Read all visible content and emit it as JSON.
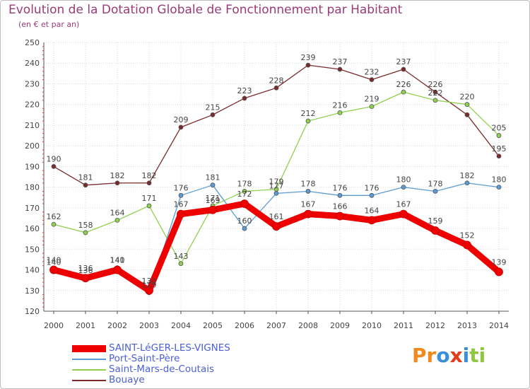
{
  "header": {
    "title": "Evolution de la Dotation Globale de Fonctionnement par Habitant",
    "subtitle": "(en € et par an)"
  },
  "logo": {
    "text": "Proxiti",
    "letters": [
      {
        "ch": "P",
        "color": "#f08a1e"
      },
      {
        "ch": "r",
        "color": "#f08a1e"
      },
      {
        "ch": "o",
        "color": "#3a8fd9"
      },
      {
        "ch": "x",
        "color": "#e23c1a"
      },
      {
        "ch": "i",
        "color": "#3a8fd9"
      },
      {
        "ch": "t",
        "color": "#8fc73e"
      },
      {
        "ch": "i",
        "color": "#8fc73e"
      }
    ]
  },
  "chart_data": {
    "type": "line",
    "title": "Evolution de la Dotation Globale de Fonctionnement par Habitant",
    "subtitle": "(en € et par an)",
    "xlabel": "",
    "ylabel": "",
    "ylim": [
      120,
      250
    ],
    "ytick_step": 10,
    "grid": true,
    "legend_position": "bottom-left",
    "x": [
      "2000",
      "2001",
      "2002",
      "2003",
      "2004",
      "2005",
      "2006",
      "2007",
      "2008",
      "2009",
      "2010",
      "2011",
      "2012",
      "2013",
      "2014"
    ],
    "series": [
      {
        "name": "Bouaye",
        "color": "#7a2a2a",
        "thick": false,
        "values": [
          190,
          181,
          182,
          182,
          209,
          215,
          223,
          228,
          239,
          237,
          232,
          237,
          226,
          215,
          195
        ],
        "labels": [
          "190",
          "181",
          "182",
          "182",
          "209",
          "215",
          "223",
          "228",
          "239",
          "237",
          "232",
          "237",
          "226",
          "",
          "195"
        ]
      },
      {
        "name": "Saint-Mars-de-Coutais",
        "color": "#8fd14f",
        "thick": false,
        "values": [
          162,
          158,
          164,
          171,
          143,
          171,
          178,
          179,
          212,
          216,
          219,
          226,
          222,
          220,
          205
        ],
        "labels": [
          "162",
          "158",
          "164",
          "171",
          "143",
          "171",
          "178",
          "179",
          "212",
          "216",
          "219",
          "226",
          "222",
          "220",
          "205"
        ]
      },
      {
        "name": "Port-Saint-Père",
        "color": "#5b9bd5",
        "thick": false,
        "values": [
          140,
          136,
          141,
          129,
          176,
          181,
          160,
          177,
          178,
          176,
          176,
          180,
          178,
          182,
          180
        ],
        "labels": [
          "140",
          "136",
          "141",
          "129",
          "176",
          "181",
          "160",
          "177",
          "178",
          "176",
          "176",
          "180",
          "178",
          "182",
          "180"
        ]
      },
      {
        "name": "SAINT-LéGER-LES-VIGNES",
        "color": "#ee0000",
        "thick": true,
        "values": [
          140,
          136,
          140,
          130,
          167,
          169,
          172,
          161,
          167,
          166,
          164,
          167,
          159,
          152,
          139
        ],
        "labels": [
          "140",
          "136",
          "140",
          "130",
          "167",
          "169",
          "172",
          "161",
          "167",
          "166",
          "164",
          "167",
          "159",
          "152",
          "139"
        ]
      }
    ]
  },
  "legend": {
    "items": [
      {
        "label": "SAINT-LéGER-LES-VIGNES",
        "color": "#ee0000",
        "thick": true
      },
      {
        "label": "Port-Saint-Père",
        "color": "#5b9bd5",
        "thick": false
      },
      {
        "label": "Saint-Mars-de-Coutais",
        "color": "#8fd14f",
        "thick": false
      },
      {
        "label": "Bouaye",
        "color": "#7a2a2a",
        "thick": false
      }
    ]
  }
}
